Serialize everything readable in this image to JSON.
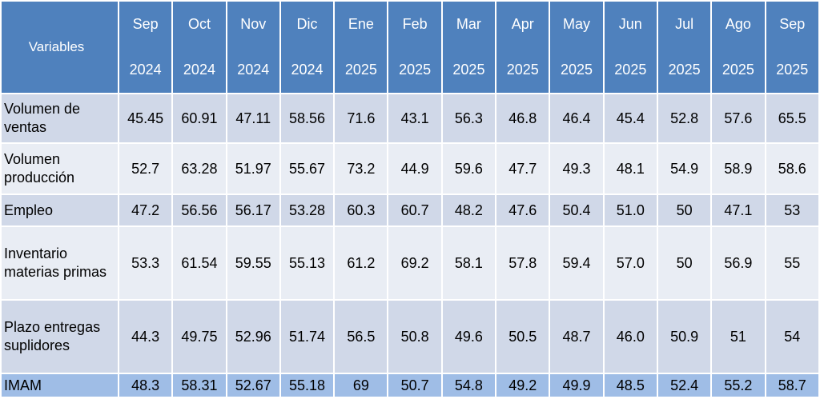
{
  "header": {
    "variables": "Variables",
    "months": [
      {
        "month": "Sep",
        "year": "2024"
      },
      {
        "month": "Oct",
        "year": "2024"
      },
      {
        "month": "Nov",
        "year": "2024"
      },
      {
        "month": "Dic",
        "year": "2024"
      },
      {
        "month": "Ene",
        "year": "2025"
      },
      {
        "month": "Feb",
        "year": "2025"
      },
      {
        "month": "Mar",
        "year": "2025"
      },
      {
        "month": "Apr",
        "year": "2025"
      },
      {
        "month": "May",
        "year": "2025"
      },
      {
        "month": "Jun",
        "year": "2025"
      },
      {
        "month": "Jul",
        "year": "2025"
      },
      {
        "month": "Ago",
        "year": "2025"
      },
      {
        "month": "Sep",
        "year": "2025"
      }
    ]
  },
  "rows": [
    {
      "label": "Volumen de ventas",
      "values": [
        "45.45",
        "60.91",
        "47.11",
        "58.56",
        "71.6",
        "43.1",
        "56.3",
        "46.8",
        "46.4",
        "45.4",
        "52.8",
        "57.6",
        "65.5"
      ]
    },
    {
      "label": "Volumen producción",
      "values": [
        "52.7",
        "63.28",
        "51.97",
        "55.67",
        "73.2",
        "44.9",
        "59.6",
        "47.7",
        "49.3",
        "48.1",
        "54.9",
        "58.9",
        "58.6"
      ]
    },
    {
      "label": "Empleo",
      "values": [
        "47.2",
        "56.56",
        "56.17",
        "53.28",
        "60.3",
        "60.7",
        "48.2",
        "47.6",
        "50.4",
        "51.0",
        "50",
        "47.1",
        "53"
      ]
    },
    {
      "label": "Inventario materias primas",
      "values": [
        "53.3",
        "61.54",
        "59.55",
        "55.13",
        "61.2",
        "69.2",
        "58.1",
        "57.8",
        "59.4",
        "57.0",
        "50",
        "56.9",
        "55"
      ]
    },
    {
      "label": "Plazo entregas suplidores",
      "values": [
        "44.3",
        "49.75",
        "52.96",
        "51.74",
        "56.5",
        "50.8",
        "49.6",
        "50.5",
        "48.7",
        "46.0",
        "50.9",
        "51",
        "54"
      ]
    },
    {
      "label": "IMAM",
      "values": [
        "48.3",
        "58.31",
        "52.67",
        "55.18",
        "69",
        "50.7",
        "54.8",
        "49.2",
        "49.9",
        "48.5",
        "52.4",
        "55.2",
        "58.7"
      ]
    }
  ]
}
